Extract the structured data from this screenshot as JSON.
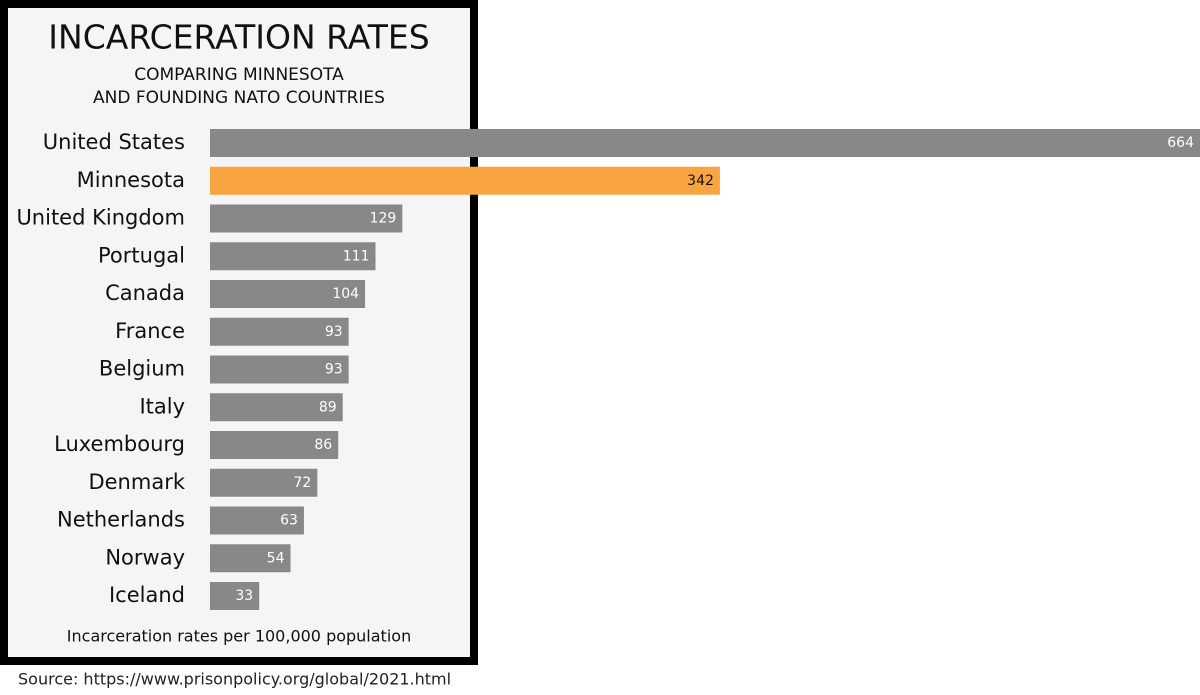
{
  "chart_data": {
    "type": "hbar",
    "title": "INCARCERATION RATES",
    "subtitle": [
      "COMPARING MINNESOTA",
      "AND FOUNDING NATO COUNTRIES"
    ],
    "categories": [
      "United States",
      "Minnesota",
      "United Kingdom",
      "Portugal",
      "Canada",
      "France",
      "Belgium",
      "Italy",
      "Luxembourg",
      "Denmark",
      "Netherlands",
      "Norway",
      "Iceland"
    ],
    "values": [
      664,
      342,
      129,
      111,
      104,
      93,
      93,
      89,
      86,
      72,
      63,
      54,
      33
    ],
    "colors": [
      "#888888",
      "#f8a541",
      "#888888",
      "#888888",
      "#888888",
      "#888888",
      "#888888",
      "#888888",
      "#888888",
      "#888888",
      "#888888",
      "#888888",
      "#888888"
    ],
    "value_label_colors": [
      "#ffffff",
      "#111111",
      "#ffffff",
      "#ffffff",
      "#ffffff",
      "#ffffff",
      "#ffffff",
      "#ffffff",
      "#ffffff",
      "#ffffff",
      "#ffffff",
      "#ffffff",
      "#ffffff"
    ],
    "note": "Incarceration rates per 100,000 population",
    "source": "Source: https://www.prisonpolicy.org/global/2021.html"
  }
}
